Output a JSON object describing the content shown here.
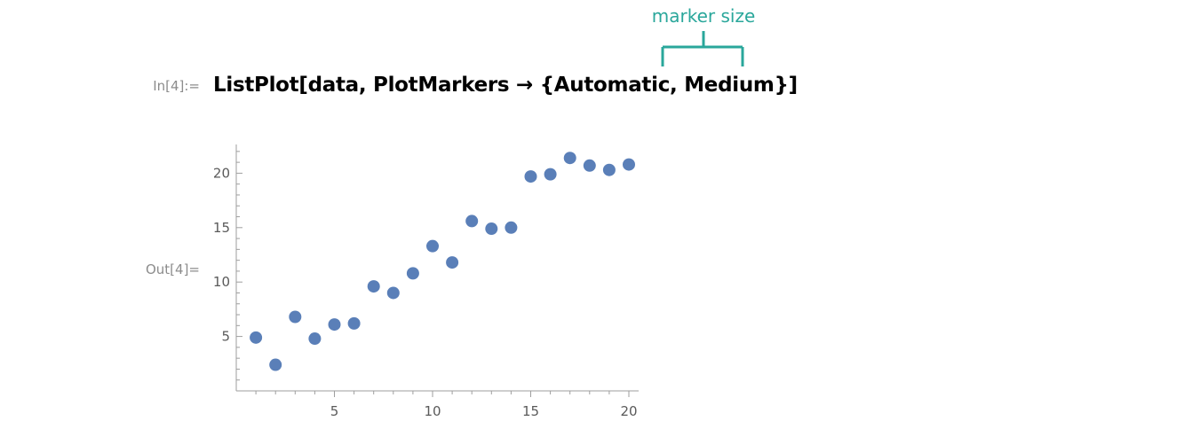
{
  "annotation": {
    "label": "marker size"
  },
  "input": {
    "label": "In[4]:=",
    "code": "ListPlot[data, PlotMarkers → {Automatic, Medium}]"
  },
  "output": {
    "label": "Out[4]="
  },
  "colors": {
    "annotation": "#2aa79b",
    "marker": "#5a7fb8",
    "axis": "#9e9e9e",
    "label_gray": "#8c8c8c"
  },
  "chart_data": {
    "type": "scatter",
    "x": [
      1,
      2,
      3,
      4,
      5,
      6,
      7,
      8,
      9,
      10,
      11,
      12,
      13,
      14,
      15,
      16,
      17,
      18,
      19,
      20
    ],
    "y": [
      4.9,
      2.4,
      6.8,
      4.8,
      6.1,
      6.2,
      9.6,
      9.0,
      10.8,
      13.3,
      11.8,
      15.6,
      14.9,
      15.0,
      19.7,
      19.9,
      21.4,
      20.7,
      20.3,
      20.8
    ],
    "xticks": [
      5,
      10,
      15,
      20
    ],
    "yticks": [
      5,
      10,
      15,
      20
    ],
    "xlim": [
      0,
      20.4
    ],
    "ylim": [
      0,
      22.8
    ],
    "grid": false,
    "title": "",
    "xlabel": "",
    "ylabel": ""
  }
}
